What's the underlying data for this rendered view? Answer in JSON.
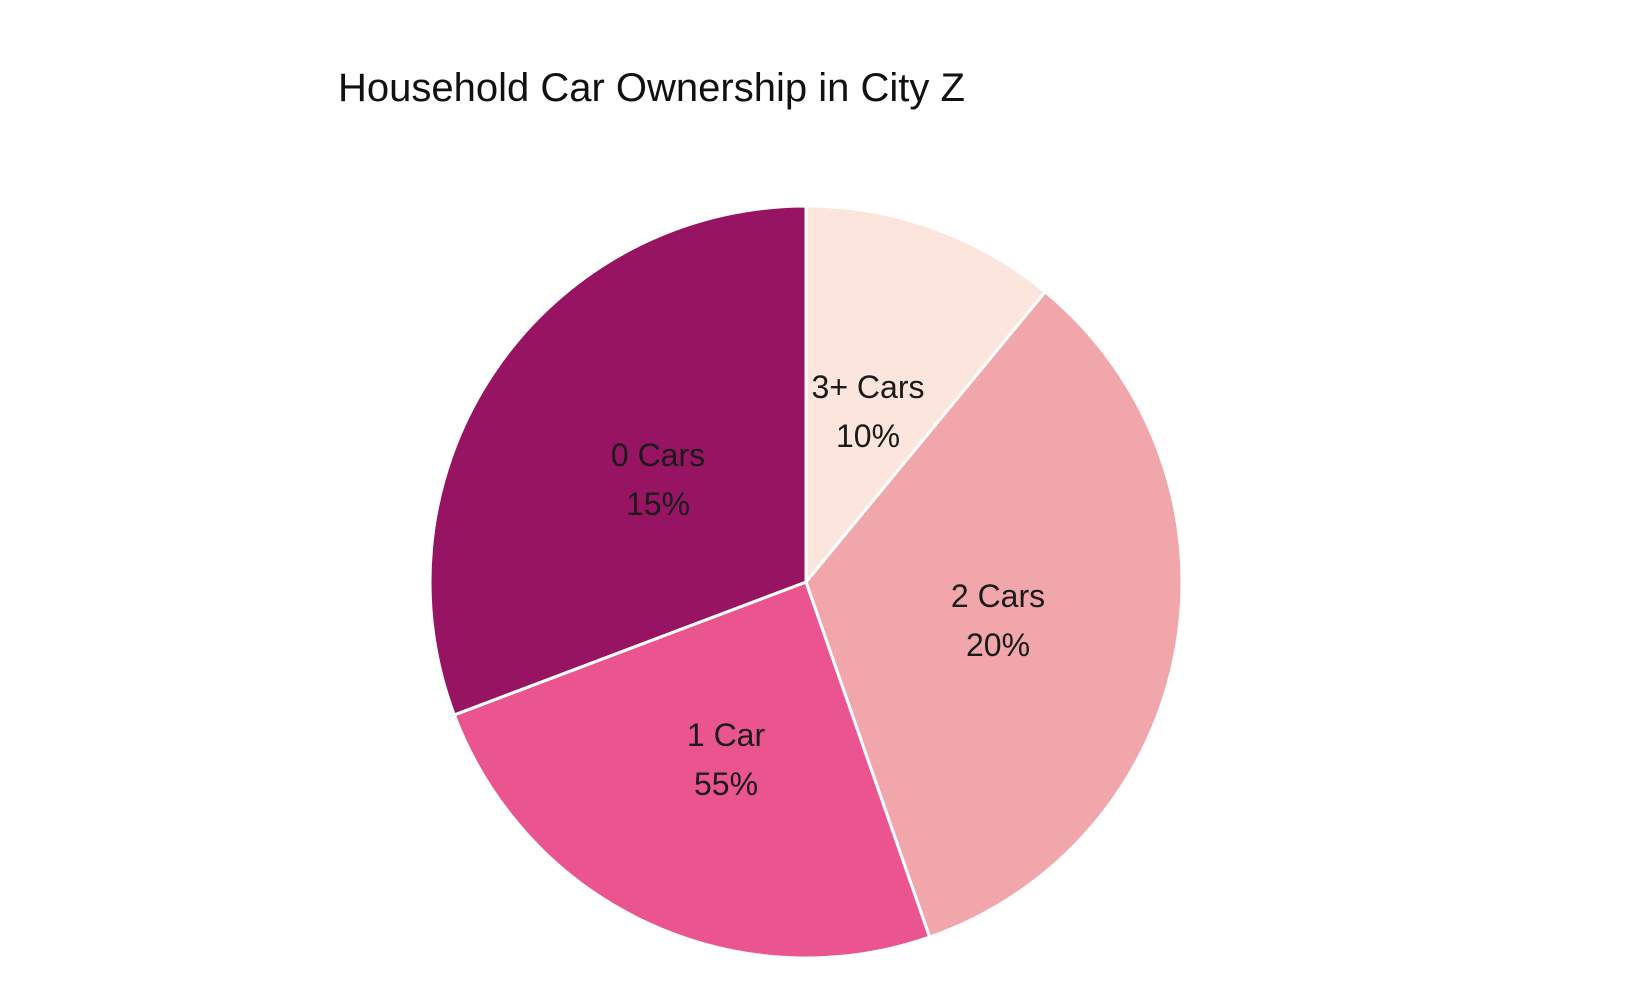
{
  "chart_data": {
    "type": "pie",
    "title": "Household Car Ownership in City Z",
    "slices": [
      {
        "label": "3+ Cars",
        "value_label": "10%",
        "value": 10,
        "color": "#fbe5dc"
      },
      {
        "label": "2 Cars",
        "value_label": "20%",
        "value": 20,
        "color": "#f1a6ab"
      },
      {
        "label": "1 Car",
        "value_label": "55%",
        "value": 55,
        "color": "#ea5590"
      },
      {
        "label": "0 Cars",
        "value_label": "15%",
        "value": 15,
        "color": "#961462"
      }
    ]
  }
}
